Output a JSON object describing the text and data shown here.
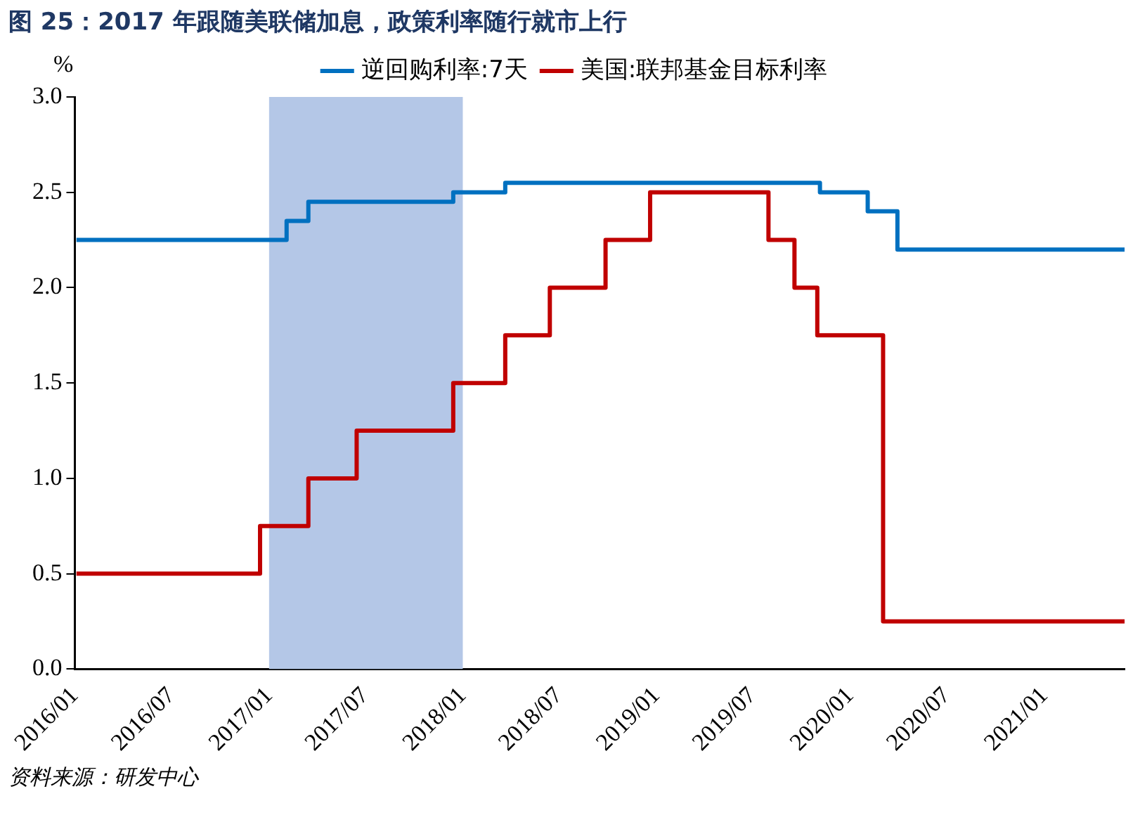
{
  "chart_data": {
    "type": "step",
    "title": "图 25：2017 年跟随美联储加息，政策利率随行就市上行",
    "ylabel": "%",
    "series": [
      {
        "name": "逆回购利率:7天",
        "color": "#0070c0",
        "x": [
          "2016-01-04",
          "2017-02-03",
          "2017-03-16",
          "2017-12-14",
          "2018-03-22",
          "2019-11-05",
          "2020-02-03",
          "2020-03-30",
          "2021-06-01"
        ],
        "values": [
          2.25,
          2.35,
          2.45,
          2.5,
          2.55,
          2.5,
          2.4,
          2.2,
          2.2
        ]
      },
      {
        "name": "美国:联邦基金目标利率",
        "color": "#c00000",
        "x": [
          "2016-01-04",
          "2016-12-15",
          "2017-03-16",
          "2017-06-15",
          "2017-12-14",
          "2018-03-22",
          "2018-06-14",
          "2018-09-27",
          "2018-12-20",
          "2019-07-31",
          "2019-09-18",
          "2019-10-31",
          "2020-03-03",
          "2021-06-01"
        ],
        "values": [
          0.5,
          0.75,
          1.0,
          1.25,
          1.5,
          1.75,
          2.0,
          2.25,
          2.5,
          2.25,
          2.0,
          1.75,
          0.25,
          0.25
        ]
      }
    ],
    "xlim": [
      "2016-01",
      "2021-06"
    ],
    "xticks": [
      {
        "value": "2016-01",
        "label": "2016/01"
      },
      {
        "value": "2016-07",
        "label": "2016/07"
      },
      {
        "value": "2017-01",
        "label": "2017/01"
      },
      {
        "value": "2017-07",
        "label": "2017/07"
      },
      {
        "value": "2018-01",
        "label": "2018/01"
      },
      {
        "value": "2018-07",
        "label": "2018/07"
      },
      {
        "value": "2019-01",
        "label": "2019/01"
      },
      {
        "value": "2019-07",
        "label": "2019/07"
      },
      {
        "value": "2020-01",
        "label": "2020/01"
      },
      {
        "value": "2020-07",
        "label": "2020/07"
      },
      {
        "value": "2021-01",
        "label": "2021/01"
      }
    ],
    "ylim": [
      0,
      3
    ],
    "yticks": [
      {
        "value": 0,
        "label": "0.0"
      },
      0.5,
      {
        "value": 1,
        "label": "1.0"
      },
      1.5,
      {
        "value": 2,
        "label": "2.0"
      },
      2.5,
      {
        "value": 3,
        "label": "3.0"
      }
    ],
    "bands": [
      {
        "axis": "x",
        "from": "2017-01",
        "to": "2018-01",
        "color": "#b4c7e7"
      }
    ],
    "legend": "top",
    "grid": false,
    "marker": "none",
    "line_style": "solid",
    "annotations": [
      "资料来源：研发中心"
    ]
  }
}
